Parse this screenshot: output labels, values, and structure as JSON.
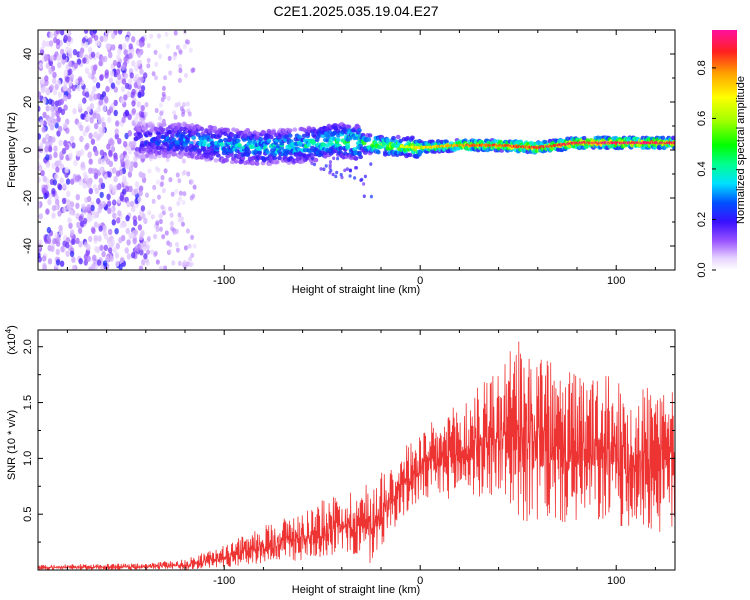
{
  "title": "C2E1.2025.035.19.04.E27",
  "chart_data": [
    {
      "type": "heatmap",
      "xlabel": "Height of straight line (km)",
      "ylabel": "Frequency (Hz)",
      "xlim": [
        -195,
        130
      ],
      "ylim": [
        -50,
        50
      ],
      "xticks": [
        -100,
        0,
        100
      ],
      "yticks": [
        -40,
        -20,
        0,
        20,
        40
      ],
      "colorbar": {
        "label": "Normalized spectral amplitude",
        "range": [
          0,
          0.95
        ],
        "ticks": [
          0.0,
          0.2,
          0.4,
          0.6,
          0.8
        ]
      },
      "ridge": [
        {
          "x": -150,
          "f": 4,
          "amp": 0.25
        },
        {
          "x": -120,
          "f": 4,
          "amp": 0.35
        },
        {
          "x": -100,
          "f": 2,
          "amp": 0.4
        },
        {
          "x": -80,
          "f": 1,
          "amp": 0.42
        },
        {
          "x": -60,
          "f": 2,
          "amp": 0.45
        },
        {
          "x": -40,
          "f": 4,
          "amp": 0.5
        },
        {
          "x": -20,
          "f": 2,
          "amp": 0.6
        },
        {
          "x": 0,
          "f": 1,
          "amp": 0.7
        },
        {
          "x": 20,
          "f": 2,
          "amp": 0.8
        },
        {
          "x": 40,
          "f": 2,
          "amp": 0.85
        },
        {
          "x": 60,
          "f": 1,
          "amp": 0.88
        },
        {
          "x": 80,
          "f": 3,
          "amp": 0.9
        },
        {
          "x": 100,
          "f": 3,
          "amp": 0.92
        },
        {
          "x": 130,
          "f": 3,
          "amp": 0.92
        }
      ]
    },
    {
      "type": "line",
      "xlabel": "Height of straight line (km)",
      "ylabel": "SNR (10 * v/v)",
      "yscale_label": "(x10",
      "yscale_exp": "4",
      "yscale_close": ")",
      "xlim": [
        -195,
        130
      ],
      "ylim": [
        0,
        21500
      ],
      "xticks": [
        -100,
        0,
        100
      ],
      "yticks": [
        5000,
        10000,
        15000,
        20000
      ],
      "ytick_labels": [
        "0.5",
        "1.0",
        "1.5",
        "2.0"
      ],
      "color": "#ee3333",
      "envelope": [
        {
          "x": -195,
          "lo": 0,
          "hi": 500
        },
        {
          "x": -140,
          "lo": 0,
          "hi": 600
        },
        {
          "x": -120,
          "lo": 0,
          "hi": 1000
        },
        {
          "x": -100,
          "lo": 200,
          "hi": 2200
        },
        {
          "x": -80,
          "lo": 600,
          "hi": 4000
        },
        {
          "x": -60,
          "lo": 800,
          "hi": 5500
        },
        {
          "x": -40,
          "lo": 1500,
          "hi": 7000
        },
        {
          "x": -25,
          "lo": 400,
          "hi": 8000
        },
        {
          "x": -15,
          "lo": 3500,
          "hi": 10000
        },
        {
          "x": 0,
          "lo": 6000,
          "hi": 12500
        },
        {
          "x": 20,
          "lo": 6500,
          "hi": 15000
        },
        {
          "x": 40,
          "lo": 6500,
          "hi": 18500
        },
        {
          "x": 55,
          "lo": 4000,
          "hi": 21500
        },
        {
          "x": 70,
          "lo": 4000,
          "hi": 18000
        },
        {
          "x": 90,
          "lo": 4000,
          "hi": 17500
        },
        {
          "x": 110,
          "lo": 3500,
          "hi": 17000
        },
        {
          "x": 130,
          "lo": 3000,
          "hi": 17500
        }
      ]
    }
  ]
}
